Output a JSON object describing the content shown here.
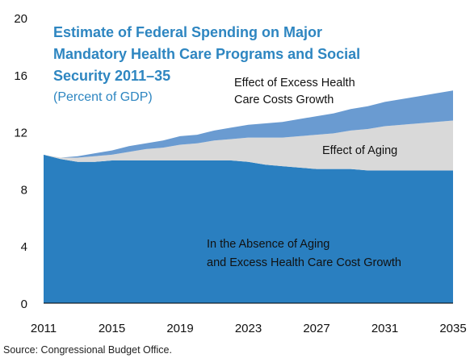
{
  "chart_data": {
    "type": "area",
    "title_lines": [
      "Estimate of Federal Spending on Major",
      "Mandatory Health Care Programs and Social",
      "Security 2011–35"
    ],
    "subtitle": "(Percent of GDP)",
    "source": "Source: Congressional Budget Office.",
    "xlabel": "",
    "ylabel": "",
    "xlim": [
      2011,
      2035
    ],
    "ylim": [
      0,
      20
    ],
    "x_ticks": [
      2011,
      2015,
      2019,
      2023,
      2027,
      2031,
      2035
    ],
    "y_ticks": [
      0,
      4,
      8,
      12,
      16,
      20
    ],
    "grid": false,
    "stacked": true,
    "x": [
      2011,
      2012,
      2013,
      2014,
      2015,
      2016,
      2017,
      2018,
      2019,
      2020,
      2021,
      2022,
      2023,
      2024,
      2025,
      2026,
      2027,
      2028,
      2029,
      2030,
      2031,
      2032,
      2033,
      2034,
      2035
    ],
    "series": [
      {
        "label_lines": [
          "In the Absence of Aging",
          "and Excess Health Care Cost Growth"
        ],
        "color": "#2A7FC0",
        "values": [
          10.4,
          10.1,
          9.9,
          9.9,
          10.0,
          10.0,
          10.0,
          10.0,
          10.0,
          10.0,
          10.0,
          10.0,
          9.9,
          9.7,
          9.6,
          9.5,
          9.4,
          9.4,
          9.4,
          9.3,
          9.3,
          9.3,
          9.3,
          9.3,
          9.3
        ]
      },
      {
        "label_lines": [
          "Effect of Aging"
        ],
        "color": "#D9D9D9",
        "values": [
          0.0,
          0.1,
          0.3,
          0.4,
          0.4,
          0.6,
          0.8,
          0.9,
          1.1,
          1.2,
          1.4,
          1.5,
          1.7,
          1.9,
          2.0,
          2.2,
          2.4,
          2.5,
          2.7,
          2.9,
          3.1,
          3.2,
          3.3,
          3.4,
          3.5
        ]
      },
      {
        "label_lines": [
          "Effect of Excess Health",
          "Care Costs Growth"
        ],
        "color": "#6A9BD1",
        "values": [
          0.0,
          0.0,
          0.1,
          0.2,
          0.3,
          0.4,
          0.4,
          0.5,
          0.6,
          0.6,
          0.7,
          0.8,
          0.9,
          1.0,
          1.1,
          1.2,
          1.3,
          1.4,
          1.5,
          1.6,
          1.7,
          1.8,
          1.9,
          2.0,
          2.1
        ]
      }
    ]
  }
}
